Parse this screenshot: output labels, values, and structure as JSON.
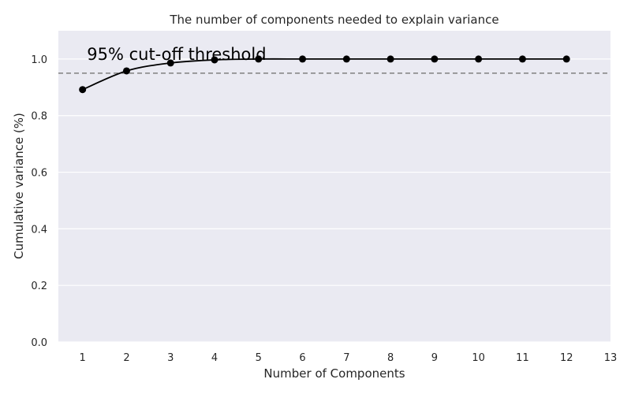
{
  "chart_data": {
    "type": "line",
    "title": "The number of components needed to explain variance",
    "xlabel": "Number of Components",
    "ylabel": "Cumulative variance (%)",
    "x": [
      1,
      2,
      3,
      4,
      5,
      6,
      7,
      8,
      9,
      10,
      11,
      12
    ],
    "series": [
      {
        "values": [
          0.892,
          0.958,
          0.986,
          0.997,
          1.0,
          1.0,
          1.0,
          1.0,
          1.0,
          1.0,
          1.0,
          1.0
        ]
      }
    ],
    "xlim": [
      0.45,
      13
    ],
    "ylim": [
      0,
      1.1
    ],
    "xticks": [
      1,
      2,
      3,
      4,
      5,
      6,
      7,
      8,
      9,
      10,
      11,
      12,
      13
    ],
    "yticks": [
      0.0,
      0.2,
      0.4,
      0.6,
      0.8,
      1.0
    ],
    "threshold": {
      "value": 0.95,
      "style": "dashed",
      "color": "#808080"
    },
    "annotation": {
      "text": "95% cut-off threshold",
      "x": 1.1,
      "y": 1.0
    },
    "grid": true,
    "colors": {
      "background": "#eaeaf2",
      "grid": "#ffffff",
      "line": "#000000",
      "marker": "#000000"
    }
  }
}
